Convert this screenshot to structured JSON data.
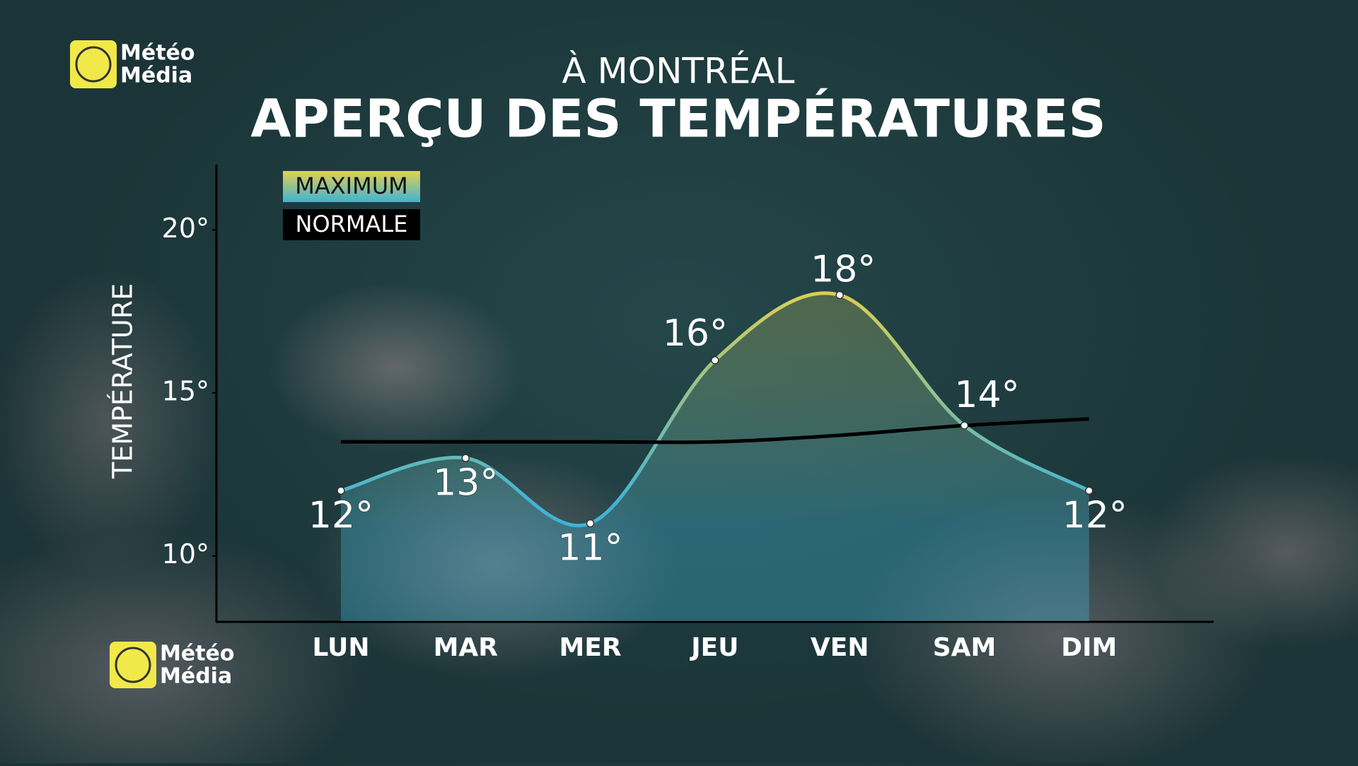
{
  "logo": [
    "Météo",
    "Média"
  ],
  "chart_data": {
    "type": "line",
    "subtitle": "À MONTRÉAL",
    "title": "APERÇU DES TEMPÉRATURES",
    "y_label": "TEMPÉRATURE",
    "categories": [
      "LUN",
      "MAR",
      "MER",
      "JEU",
      "VEN",
      "SAM",
      "DIM"
    ],
    "ylim": [
      8,
      22
    ],
    "yticks": [
      {
        "value": 10,
        "label": "10°"
      },
      {
        "value": 15,
        "label": "15°"
      },
      {
        "value": 20,
        "label": "20°"
      }
    ],
    "legend": "top-left",
    "series": [
      {
        "name": "MAXIMUM",
        "colors": [
          "#3fb3d6",
          "#e6d04c"
        ],
        "smooth": true,
        "markers": true,
        "values": [
          12,
          13,
          11,
          16,
          18,
          14,
          12
        ],
        "value_labels": [
          "12°",
          "13°",
          "11°",
          "16°",
          "18°",
          "14°",
          "12°"
        ]
      },
      {
        "name": "NORMALE",
        "color": "#000000",
        "smooth": true,
        "values": [
          13.5,
          13.5,
          13.5,
          13.5,
          13.7,
          14.0,
          14.2
        ]
      }
    ]
  }
}
